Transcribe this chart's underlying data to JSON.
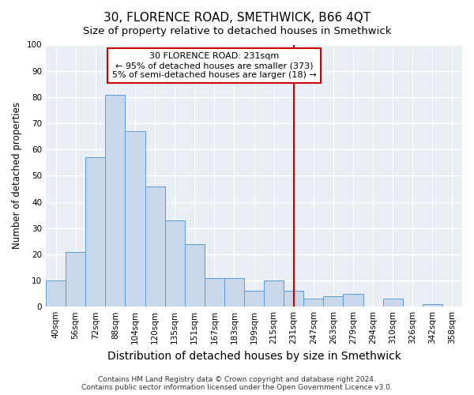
{
  "title": "30, FLORENCE ROAD, SMETHWICK, B66 4QT",
  "subtitle": "Size of property relative to detached houses in Smethwick",
  "xlabel": "Distribution of detached houses by size in Smethwick",
  "ylabel": "Number of detached properties",
  "footer1": "Contains HM Land Registry data © Crown copyright and database right 2024.",
  "footer2": "Contains public sector information licensed under the Open Government Licence v3.0.",
  "bar_labels": [
    "40sqm",
    "56sqm",
    "72sqm",
    "88sqm",
    "104sqm",
    "120sqm",
    "135sqm",
    "151sqm",
    "167sqm",
    "183sqm",
    "199sqm",
    "215sqm",
    "231sqm",
    "247sqm",
    "263sqm",
    "279sqm",
    "294sqm",
    "310sqm",
    "326sqm",
    "342sqm",
    "358sqm"
  ],
  "bar_values": [
    10,
    21,
    57,
    81,
    67,
    46,
    33,
    24,
    11,
    11,
    6,
    10,
    6,
    3,
    4,
    5,
    0,
    3,
    0,
    1,
    0
  ],
  "bar_color": "#c8d8ea",
  "bar_edge_color": "#5b9bd5",
  "vline_x": 12,
  "vline_color": "#cc0000",
  "annotation_title": "30 FLORENCE ROAD: 231sqm",
  "annotation_line1": "← 95% of detached houses are smaller (373)",
  "annotation_line2": "5% of semi-detached houses are larger (18) →",
  "annotation_box_facecolor": "white",
  "annotation_box_edgecolor": "#cc0000",
  "ylim": [
    0,
    100
  ],
  "yticks": [
    0,
    10,
    20,
    30,
    40,
    50,
    60,
    70,
    80,
    90,
    100
  ],
  "fig_background": "#ffffff",
  "plot_background": "#e8eef4",
  "grid_color": "#ffffff",
  "title_fontsize": 11,
  "subtitle_fontsize": 9.5,
  "xlabel_fontsize": 10,
  "ylabel_fontsize": 8.5,
  "tick_fontsize": 7.5,
  "annot_fontsize": 8,
  "footer_fontsize": 6.5
}
